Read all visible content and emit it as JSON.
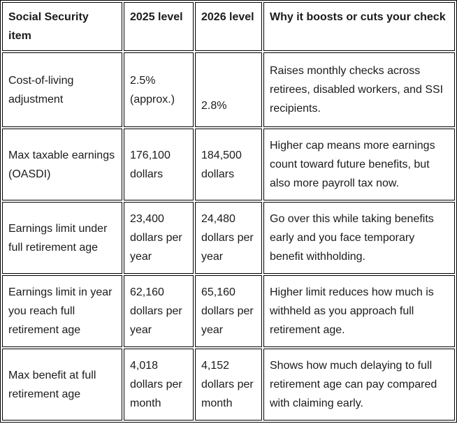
{
  "table": {
    "headers": {
      "item": "Social Security item",
      "level_2025": "2025 level",
      "level_2026": "2026 level",
      "why": "Why it boosts or cuts your check"
    },
    "rows": [
      {
        "item": "Cost-of-living adjustment",
        "level_2025": "2.5% (approx.)",
        "level_2026": "2.8%",
        "why": "Raises monthly checks across retirees, disabled workers, and SSI recipients."
      },
      {
        "item": "Max taxable earnings (OASDI)",
        "level_2025": "176,100 dollars",
        "level_2026": "184,500 dollars",
        "why": "Higher cap means more earnings count toward future benefits, but also more payroll tax now."
      },
      {
        "item": "Earnings limit under full retirement age",
        "level_2025": "23,400 dollars per year",
        "level_2026": "24,480 dollars per year",
        "why": "Go over this while taking benefits early and you face temporary benefit withholding."
      },
      {
        "item": "Earnings limit in year you reach full retirement age",
        "level_2025": "62,160 dollars per year",
        "level_2026": "65,160 dollars per year",
        "why": "Higher limit reduces how much is withheld as you approach full retirement age."
      },
      {
        "item": "Max benefit at full retirement age",
        "level_2025": "4,018 dollars per month",
        "level_2026": "4,152 dollars per month",
        "why": "Shows how much delaying to full retirement age can pay compared with claiming early."
      }
    ],
    "colors": {
      "border": "#000000",
      "text": "#1b1b1b",
      "background": "#ffffff"
    }
  }
}
